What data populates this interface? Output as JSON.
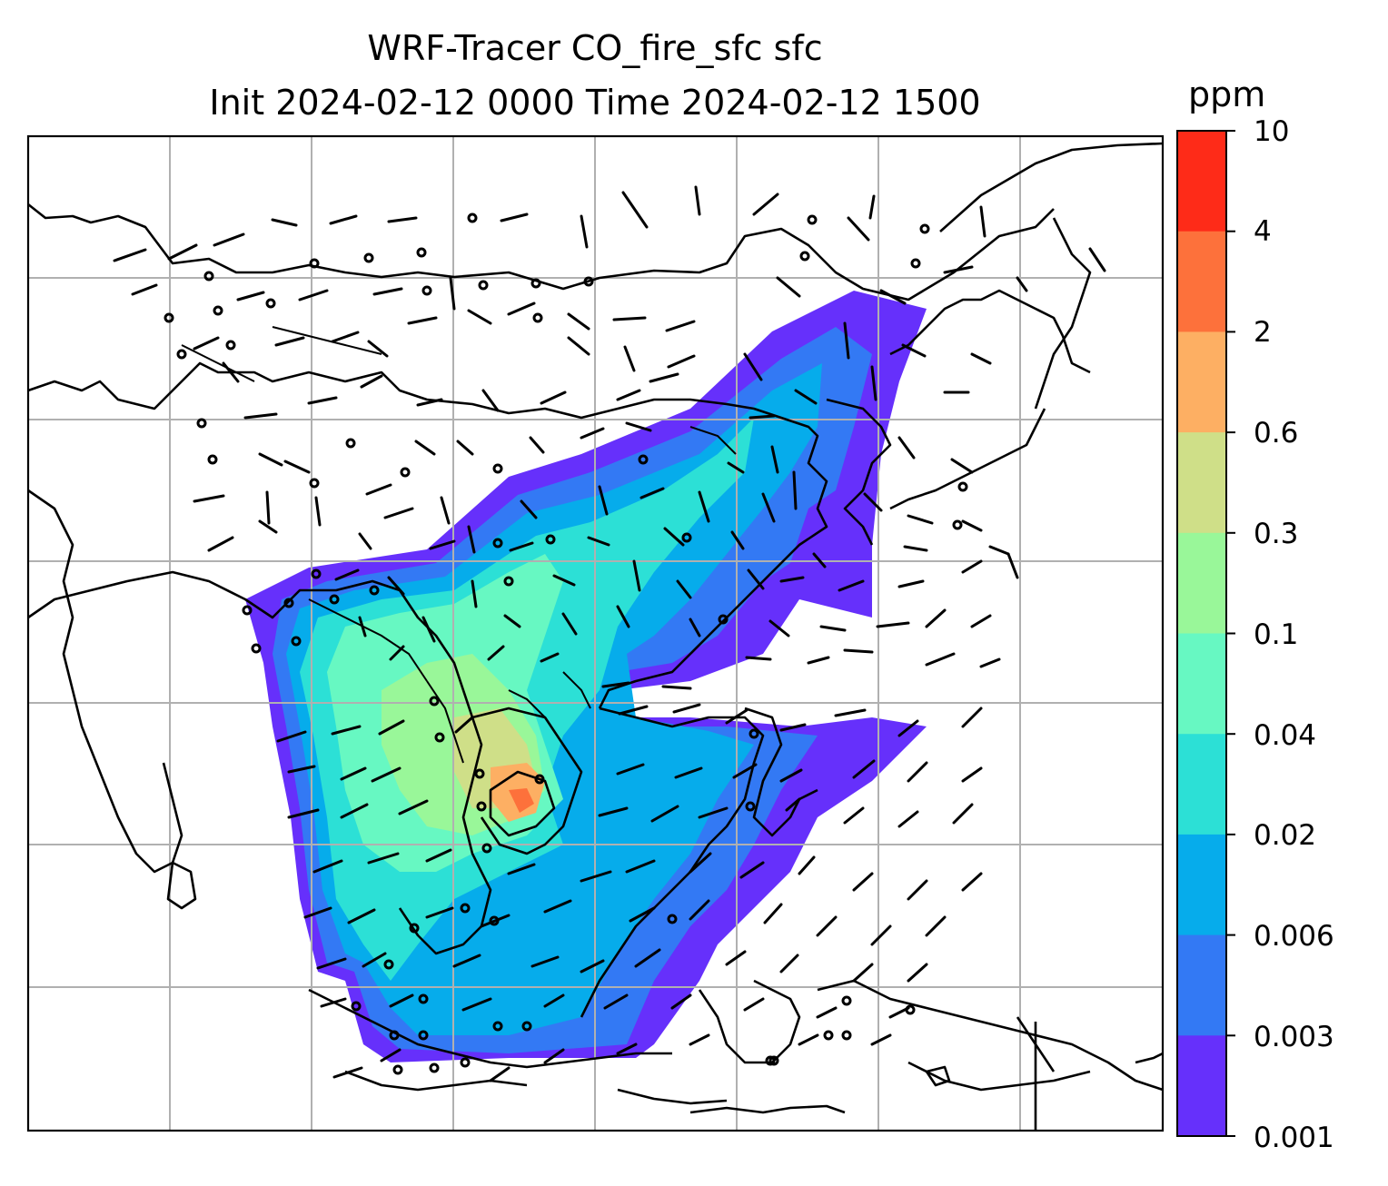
{
  "title": {
    "line1": "WRF-Tracer CO_fire_sfc sfc",
    "line2": "Init 2024-02-12 0000 Time 2024-02-12 1500"
  },
  "colorbar": {
    "unit": "ppm",
    "ticks": [
      "10",
      "4",
      "2",
      "0.6",
      "0.3",
      "0.1",
      "0.04",
      "0.02",
      "0.006",
      "0.003",
      "0.001"
    ],
    "colors": [
      "#2f2f2f",
      "#fe2b18",
      "#fd713b",
      "#fdaf63",
      "#cfdf88",
      "#99f799",
      "#67f8c2",
      "#2ce0d6",
      "#06aceb",
      "#3379f4",
      "#6630fb"
    ]
  },
  "map": {
    "gridlines": true,
    "features": [
      "coastlines",
      "country borders",
      "wind barbs",
      "tracer concentration fill"
    ]
  }
}
